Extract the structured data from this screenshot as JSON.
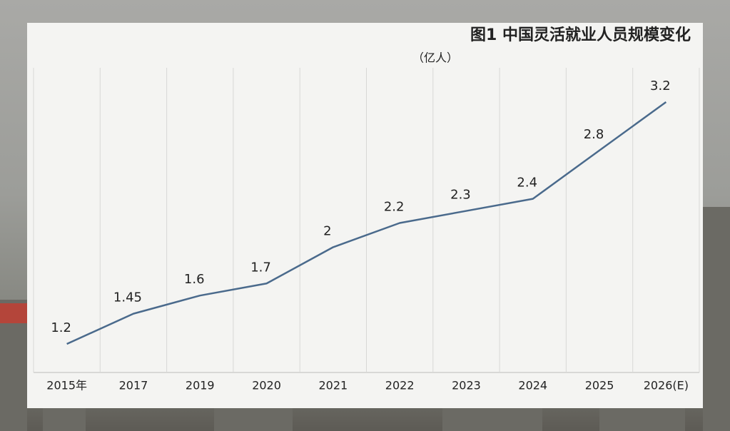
{
  "chart_data": {
    "type": "line",
    "title": "图1 中国灵活就业人员规模变化",
    "subtitle": "（亿人）",
    "categories": [
      "2015年",
      "2017",
      "2019",
      "2020",
      "2021",
      "2022",
      "2023",
      "2024",
      "2025",
      "2026(E)"
    ],
    "values": [
      1.2,
      1.45,
      1.6,
      1.7,
      2,
      2.2,
      2.3,
      2.4,
      2.8,
      3.2
    ],
    "color": "#4a6a8c",
    "grid": true
  }
}
